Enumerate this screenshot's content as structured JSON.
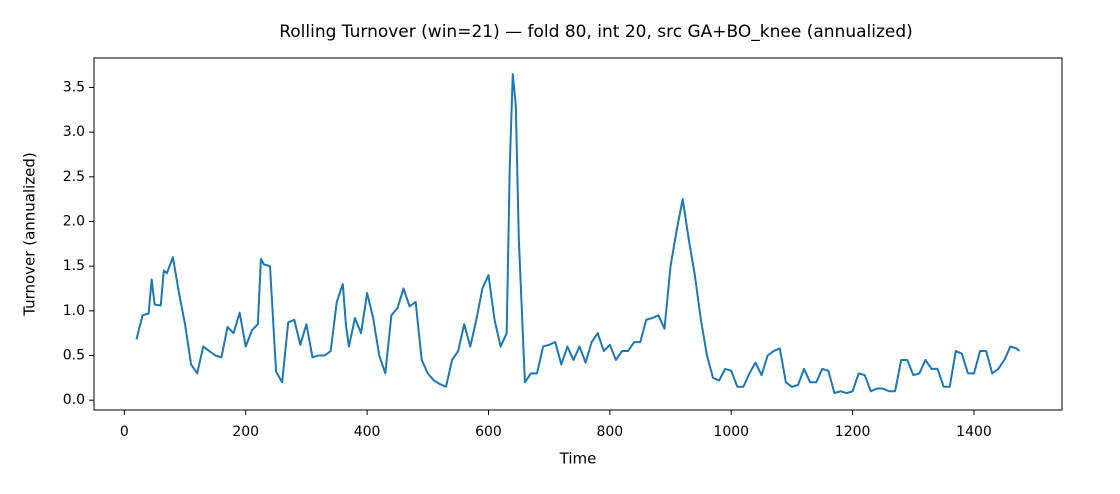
{
  "chart_data": {
    "type": "line",
    "title": "Rolling Turnover (win=21) — fold 80, int 20, src GA+BO_knee (annualized)",
    "x_label": "Time",
    "y_label": "Turnover (annualized)",
    "x": [
      20,
      30,
      40,
      45,
      50,
      60,
      65,
      70,
      80,
      90,
      100,
      110,
      120,
      130,
      140,
      150,
      160,
      170,
      180,
      190,
      200,
      210,
      220,
      225,
      230,
      240,
      250,
      260,
      270,
      280,
      290,
      300,
      310,
      320,
      330,
      340,
      350,
      360,
      365,
      370,
      380,
      390,
      400,
      410,
      420,
      430,
      440,
      450,
      460,
      470,
      480,
      490,
      500,
      510,
      520,
      530,
      540,
      550,
      560,
      570,
      580,
      590,
      600,
      610,
      620,
      630,
      635,
      640,
      645,
      650,
      660,
      670,
      680,
      690,
      700,
      710,
      720,
      730,
      740,
      750,
      760,
      770,
      780,
      790,
      800,
      810,
      820,
      830,
      840,
      850,
      860,
      870,
      880,
      890,
      900,
      910,
      920,
      930,
      940,
      950,
      960,
      970,
      980,
      990,
      1000,
      1010,
      1020,
      1030,
      1040,
      1050,
      1060,
      1070,
      1080,
      1090,
      1100,
      1110,
      1120,
      1130,
      1140,
      1150,
      1160,
      1170,
      1180,
      1190,
      1200,
      1210,
      1220,
      1230,
      1240,
      1250,
      1260,
      1270,
      1280,
      1290,
      1300,
      1310,
      1320,
      1330,
      1340,
      1350,
      1360,
      1370,
      1380,
      1390,
      1400,
      1410,
      1420,
      1430,
      1440,
      1450,
      1460,
      1470,
      1475
    ],
    "series": [
      {
        "name": "Turnover",
        "color": "#1f77b4",
        "values": [
          0.68,
          0.95,
          0.97,
          1.35,
          1.07,
          1.06,
          1.45,
          1.42,
          1.6,
          1.2,
          0.85,
          0.4,
          0.3,
          0.6,
          0.55,
          0.5,
          0.48,
          0.82,
          0.75,
          0.98,
          0.6,
          0.78,
          0.85,
          1.58,
          1.52,
          1.5,
          0.32,
          0.2,
          0.87,
          0.9,
          0.62,
          0.85,
          0.48,
          0.5,
          0.5,
          0.55,
          1.1,
          1.3,
          0.85,
          0.6,
          0.92,
          0.75,
          1.2,
          0.92,
          0.5,
          0.3,
          0.95,
          1.03,
          1.25,
          1.05,
          1.1,
          0.45,
          0.3,
          0.22,
          0.18,
          0.15,
          0.45,
          0.55,
          0.85,
          0.6,
          0.9,
          1.25,
          1.4,
          0.9,
          0.6,
          0.75,
          2.6,
          3.65,
          3.3,
          1.8,
          0.2,
          0.3,
          0.3,
          0.6,
          0.62,
          0.65,
          0.4,
          0.6,
          0.45,
          0.6,
          0.42,
          0.65,
          0.75,
          0.55,
          0.62,
          0.45,
          0.55,
          0.55,
          0.65,
          0.65,
          0.9,
          0.92,
          0.95,
          0.8,
          1.5,
          1.9,
          2.25,
          1.8,
          1.4,
          0.9,
          0.5,
          0.25,
          0.22,
          0.35,
          0.33,
          0.15,
          0.15,
          0.3,
          0.42,
          0.28,
          0.5,
          0.55,
          0.58,
          0.2,
          0.15,
          0.17,
          0.35,
          0.2,
          0.2,
          0.35,
          0.33,
          0.08,
          0.1,
          0.08,
          0.1,
          0.3,
          0.28,
          0.1,
          0.13,
          0.13,
          0.1,
          0.1,
          0.45,
          0.45,
          0.28,
          0.3,
          0.45,
          0.35,
          0.35,
          0.15,
          0.15,
          0.55,
          0.52,
          0.3,
          0.3,
          0.55,
          0.55,
          0.3,
          0.35,
          0.45,
          0.6,
          0.58,
          0.55
        ]
      }
    ],
    "xlim": [
      -50,
      1545
    ],
    "ylim": [
      -0.11,
      3.83
    ],
    "xticks": [
      0,
      200,
      400,
      600,
      800,
      1000,
      1200,
      1400
    ],
    "yticks": [
      {
        "value": 0,
        "label": "0.0"
      },
      0.5,
      {
        "value": 1,
        "label": "1.0"
      },
      1.5,
      {
        "value": 2,
        "label": "2.0"
      },
      2.5,
      {
        "value": 3,
        "label": "3.0"
      },
      3.5
    ]
  }
}
